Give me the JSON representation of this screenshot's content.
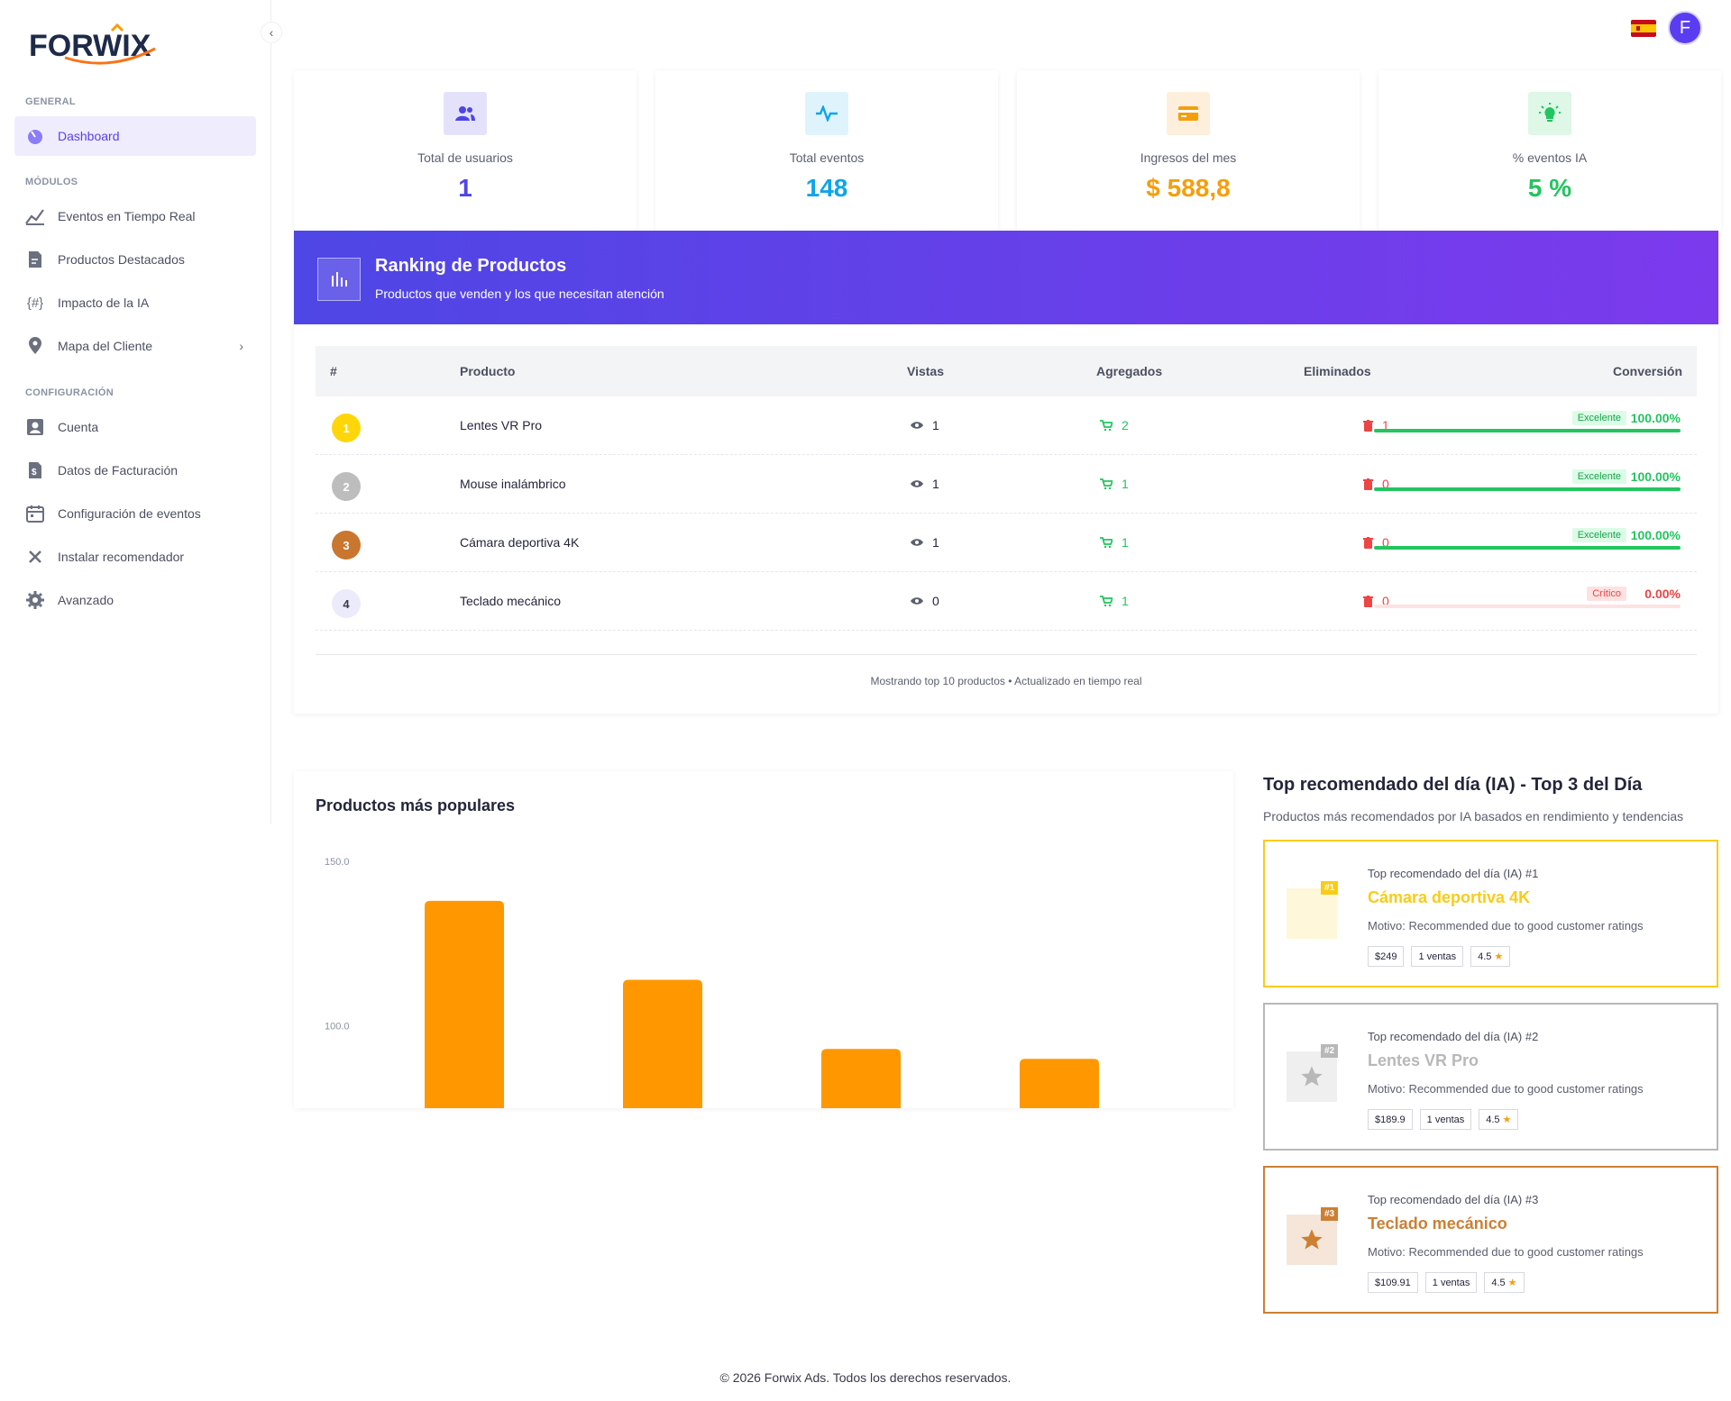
{
  "brand": {
    "name": "FORWIX"
  },
  "sidebar": {
    "sections": {
      "general": "GENERAL",
      "modulos": "MÓDULOS",
      "config": "CONFIGURACIÓN"
    },
    "items": [
      {
        "label": "Dashboard"
      },
      {
        "label": "Eventos en Tiempo Real"
      },
      {
        "label": "Productos Destacados"
      },
      {
        "label": "Impacto de la IA"
      },
      {
        "label": "Mapa del Cliente"
      },
      {
        "label": "Cuenta"
      },
      {
        "label": "Datos de Facturación"
      },
      {
        "label": "Configuración de eventos"
      },
      {
        "label": "Instalar recomendador"
      },
      {
        "label": "Avanzado"
      }
    ]
  },
  "header": {
    "avatar_initial": "F"
  },
  "stats": [
    {
      "label": "Total de usuarios",
      "value": "1",
      "color": "#4f46e5"
    },
    {
      "label": "Total eventos",
      "value": "148",
      "color": "#0ea5e9"
    },
    {
      "label": "Ingresos del mes",
      "value": "$ 588,8",
      "color": "#f59e0b"
    },
    {
      "label": "% eventos IA",
      "value": "5 %",
      "color": "#22c55e"
    }
  ],
  "ranking": {
    "title": "Ranking de Productos",
    "subtitle": "Productos que venden y los que necesitan atención",
    "columns": {
      "num": "#",
      "producto": "Producto",
      "vistas": "Vistas",
      "agregados": "Agregados",
      "eliminados": "Eliminados",
      "conversion": "Conversión"
    },
    "rows": [
      {
        "rank": "1",
        "name": "Lentes VR Pro",
        "views": "1",
        "added": "2",
        "removed": "1",
        "tag": "Excelente",
        "pct": "100.00%",
        "fill": 1.0
      },
      {
        "rank": "2",
        "name": "Mouse inalámbrico",
        "views": "1",
        "added": "1",
        "removed": "0",
        "tag": "Excelente",
        "pct": "100.00%",
        "fill": 1.0
      },
      {
        "rank": "3",
        "name": "Cámara deportiva 4K",
        "views": "1",
        "added": "1",
        "removed": "0",
        "tag": "Excelente",
        "pct": "100.00%",
        "fill": 1.0
      },
      {
        "rank": "4",
        "name": "Teclado mecánico",
        "views": "0",
        "added": "1",
        "removed": "0",
        "tag": "Crítico",
        "pct": "0.00%",
        "fill": 0.0
      }
    ],
    "footer": "Mostrando top 10 productos • Actualizado en tiempo real"
  },
  "chart_data": {
    "type": "bar",
    "title": "Productos más populares",
    "categories": [
      "",
      "",
      "",
      ""
    ],
    "values": [
      138,
      114,
      93,
      90
    ],
    "ylim": [
      75,
      150
    ],
    "yticks": [
      "150.0",
      "100.0"
    ],
    "color": "#ff9800"
  },
  "top_reco": {
    "title": "Top recomendado del día (IA) - Top 3 del Día",
    "subtitle": "Productos más recomendados por IA basados en rendimiento y tendencias",
    "cards": [
      {
        "heading": "Top recomendado del día (IA) #1",
        "badge": "#1",
        "name": "Cámara deportiva 4K",
        "reason": "Motivo: Recommended due to good customer ratings",
        "price": "$249",
        "sales": "1 ventas",
        "rating": "4.5",
        "color": "#facc15"
      },
      {
        "heading": "Top recomendado del día (IA) #2",
        "badge": "#2",
        "name": "Lentes VR Pro",
        "reason": "Motivo: Recommended due to good customer ratings",
        "price": "$189.9",
        "sales": "1 ventas",
        "rating": "4.5",
        "color": "#b8b8b8"
      },
      {
        "heading": "Top recomendado del día (IA) #3",
        "badge": "#3",
        "name": "Teclado mecánico",
        "reason": "Motivo: Recommended due to good customer ratings",
        "price": "$109.91",
        "sales": "1 ventas",
        "rating": "4.5",
        "color": "#cd7f32"
      }
    ]
  },
  "footer": {
    "text": "© 2026 Forwix Ads. Todos los derechos reservados."
  }
}
